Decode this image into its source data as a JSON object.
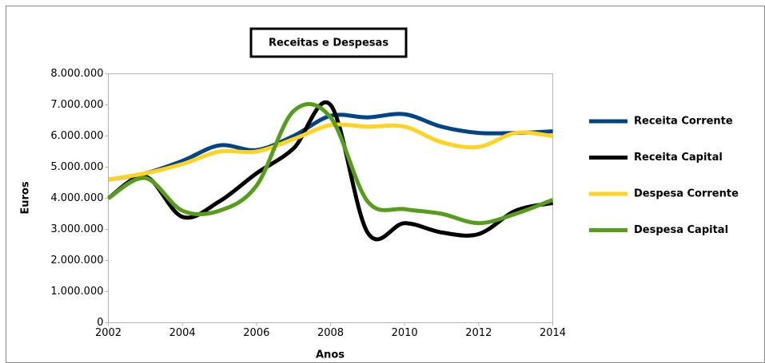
{
  "chart_data": {
    "type": "line",
    "title": "Receitas e Despesas",
    "x_label": "Anos",
    "y_label": "Euros",
    "x": [
      2002,
      2003,
      2004,
      2005,
      2006,
      2007,
      2008,
      2009,
      2010,
      2011,
      2012,
      2013,
      2014
    ],
    "series": [
      {
        "name": "Receita Corrente",
        "color": "#004586",
        "values": [
          4600000,
          4800000,
          5200000,
          5700000,
          5550000,
          6000000,
          6650000,
          6600000,
          6700000,
          6300000,
          6100000,
          6100000,
          6150000
        ]
      },
      {
        "name": "Receita Capital",
        "color": "#000000",
        "values": [
          4000000,
          4700000,
          3400000,
          3900000,
          4800000,
          5600000,
          7000000,
          2900000,
          3200000,
          2900000,
          2850000,
          3600000,
          3850000
        ]
      },
      {
        "name": "Despesa Corrente",
        "color": "#ffd320",
        "values": [
          4600000,
          4800000,
          5100000,
          5500000,
          5500000,
          5900000,
          6350000,
          6300000,
          6300000,
          5800000,
          5650000,
          6100000,
          6000000
        ]
      },
      {
        "name": "Despesa Capital",
        "color": "#579d1c",
        "values": [
          4000000,
          4650000,
          3600000,
          3600000,
          4400000,
          6800000,
          6600000,
          3900000,
          3650000,
          3500000,
          3200000,
          3500000,
          3950000
        ]
      }
    ],
    "xlim": [
      2002,
      2014
    ],
    "xticks": [
      2002,
      2004,
      2006,
      2008,
      2010,
      2012,
      2014
    ],
    "ylim": [
      0,
      8000000
    ],
    "yticks": [
      0,
      {
        "value": 1000000,
        "label": "1.000.000"
      },
      {
        "value": 2000000,
        "label": "2.000.000"
      },
      {
        "value": 3000000,
        "label": "3.000.000"
      },
      {
        "value": 4000000,
        "label": "4.000.000"
      },
      {
        "value": 5000000,
        "label": "5.000.000"
      },
      {
        "value": 6000000,
        "label": "6.000.000"
      },
      {
        "value": 7000000,
        "label": "7.000.000"
      },
      {
        "value": 8000000,
        "label": "8.000.000"
      }
    ],
    "grid": false,
    "legend": "right"
  }
}
